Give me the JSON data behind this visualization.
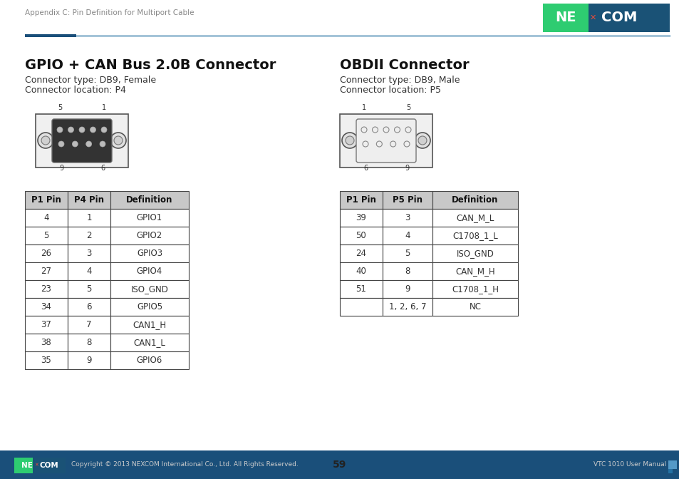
{
  "page_header": "Appendix C: Pin Definition for Multiport Cable",
  "page_number": "59",
  "footer_left": "Copyright © 2013 NEXCOM International Co., Ltd. All Rights Reserved.",
  "footer_right": "VTC 1010 User Manual",
  "left_section_title": "GPIO + CAN Bus 2.0B Connector",
  "left_sub1": "Connector type: DB9, Female",
  "left_sub2": "Connector location: P4",
  "right_section_title": "OBDII Connector",
  "right_sub1": "Connector type: DB9, Male",
  "right_sub2": "Connector location: P5",
  "left_table_headers": [
    "P1 Pin",
    "P4 Pin",
    "Definition"
  ],
  "left_table_rows": [
    [
      "4",
      "1",
      "GPIO1"
    ],
    [
      "5",
      "2",
      "GPIO2"
    ],
    [
      "26",
      "3",
      "GPIO3"
    ],
    [
      "27",
      "4",
      "GPIO4"
    ],
    [
      "23",
      "5",
      "ISO_GND"
    ],
    [
      "34",
      "6",
      "GPIO5"
    ],
    [
      "37",
      "7",
      "CAN1_H"
    ],
    [
      "38",
      "8",
      "CAN1_L"
    ],
    [
      "35",
      "9",
      "GPIO6"
    ]
  ],
  "right_table_headers": [
    "P1 Pin",
    "P5 Pin",
    "Definition"
  ],
  "right_table_rows": [
    [
      "39",
      "3",
      "CAN_M_L"
    ],
    [
      "50",
      "4",
      "C1708_1_L"
    ],
    [
      "24",
      "5",
      "ISO_GND"
    ],
    [
      "40",
      "8",
      "CAN_M_H"
    ],
    [
      "51",
      "9",
      "C1708_1_H"
    ],
    [
      "",
      "1, 2, 6, 7",
      "NC"
    ]
  ],
  "table_header_bg": "#c8c8c8",
  "table_border_color": "#444444",
  "bg_color": "#ffffff",
  "text_color": "#333333",
  "gray_text": "#888888",
  "blue_dark": "#1a4f7a",
  "blue_line": "#2471a3",
  "footer_bg": "#1a4f7a"
}
